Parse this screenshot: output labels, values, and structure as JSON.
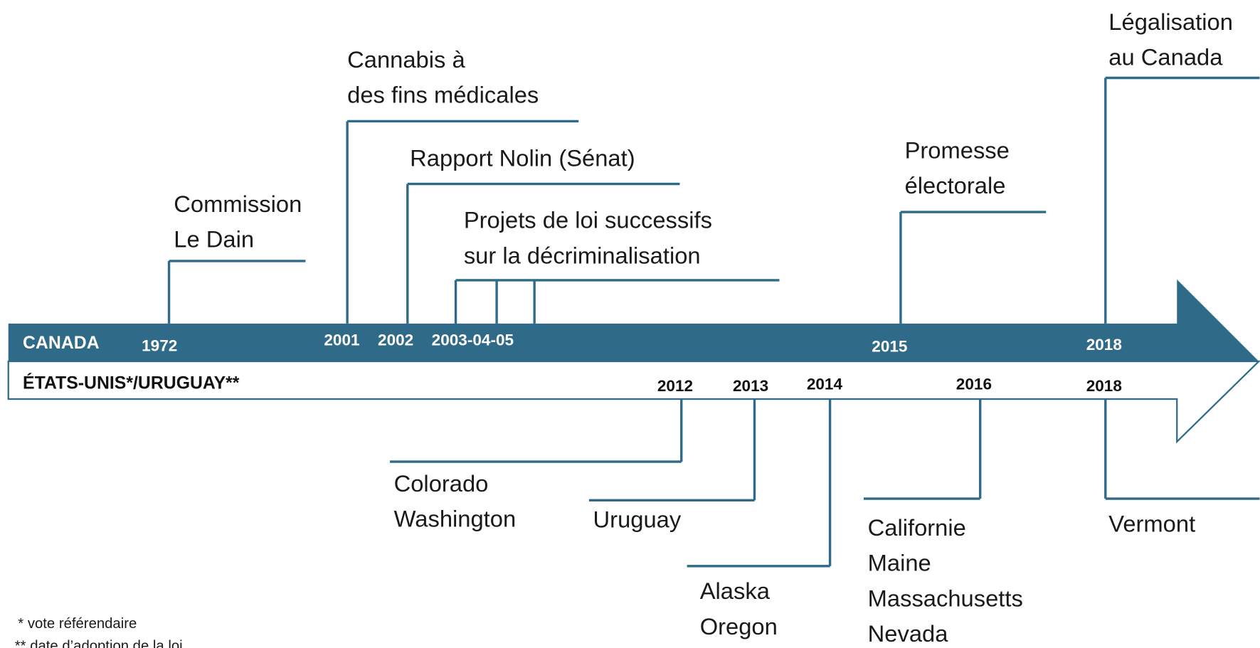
{
  "canada": {
    "label": "CANADA",
    "events": [
      {
        "year": "1972",
        "lines": [
          "Commission",
          "Le Dain"
        ]
      },
      {
        "year": "2001",
        "lines": [
          "Cannabis à",
          "des fins médicales"
        ]
      },
      {
        "year": "2002",
        "lines": [
          "Rapport Nolin (Sénat)"
        ]
      },
      {
        "year": "2003-04-05",
        "lines": [
          "Projets de loi successifs",
          "sur la décriminalisation"
        ]
      },
      {
        "year": "2015",
        "lines": [
          "Promesse",
          "électorale"
        ]
      },
      {
        "year": "2018",
        "lines": [
          "Légalisation",
          "au Canada"
        ]
      }
    ]
  },
  "us": {
    "label": "ÉTATS-UNIS*/URUGUAY**",
    "events": [
      {
        "year": "2012",
        "lines": [
          "Colorado",
          "Washington"
        ]
      },
      {
        "year": "2013",
        "lines": [
          "Uruguay"
        ]
      },
      {
        "year": "2014",
        "lines": [
          "Alaska",
          "Oregon"
        ]
      },
      {
        "year": "2016",
        "lines": [
          "Californie",
          "Maine",
          "Massachusetts",
          "Nevada"
        ]
      },
      {
        "year": "2018",
        "lines": [
          "Vermont"
        ]
      }
    ]
  },
  "footnotes": [
    "* vote référendaire",
    "** date d’adoption de la loi"
  ]
}
